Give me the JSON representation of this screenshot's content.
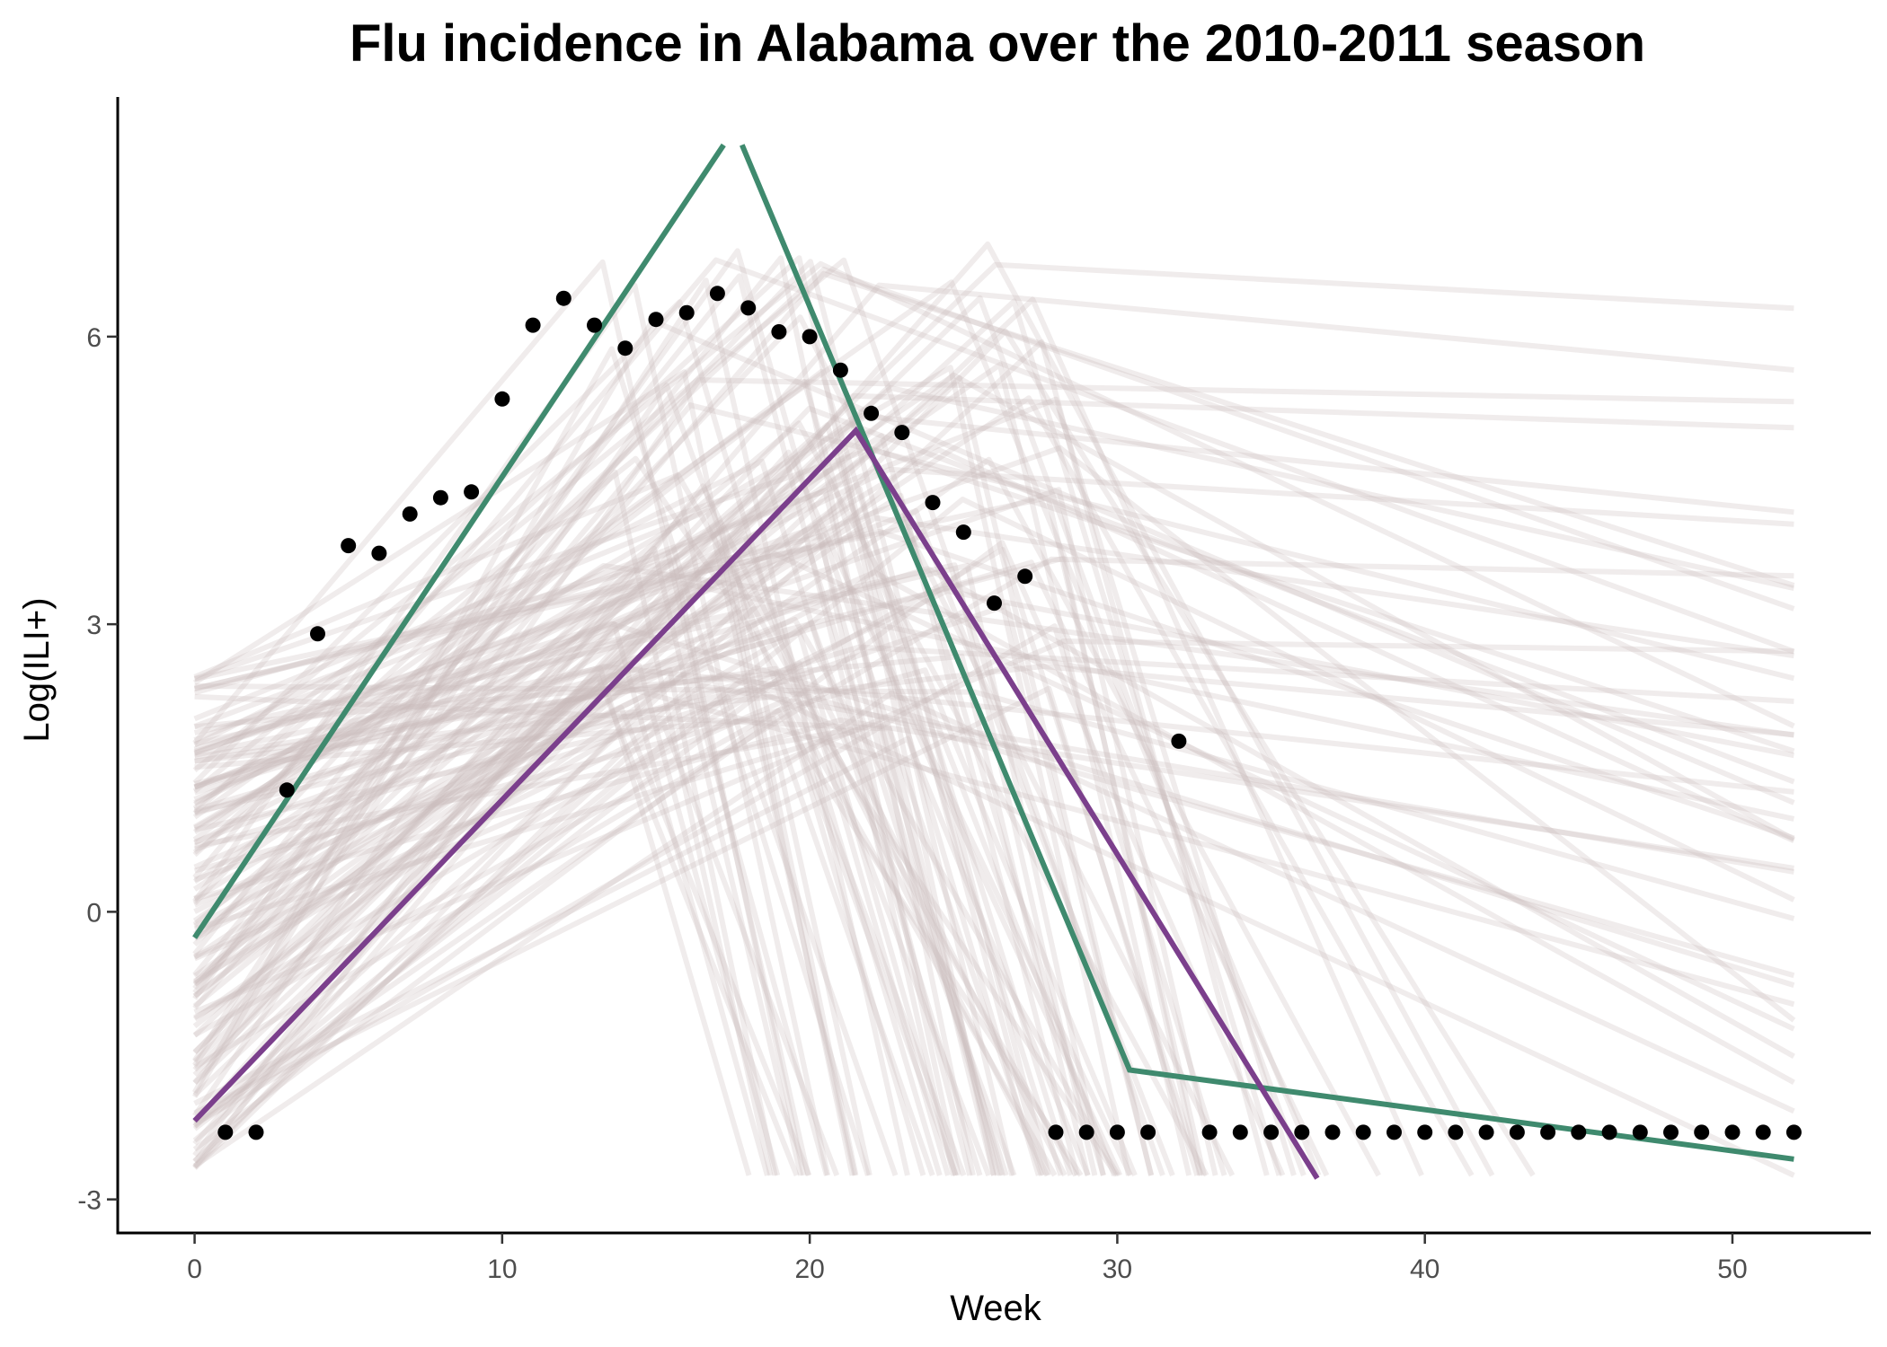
{
  "chart_data": {
    "type": "line",
    "title": "Flu incidence in Alabama over the 2010-2011 season",
    "xlabel": "Week",
    "ylabel": "Log(ILI+)",
    "xlim": [
      -2.5,
      54.5
    ],
    "ylim": [
      -3.35,
      8.5
    ],
    "x_ticks": [
      0,
      10,
      20,
      30,
      40,
      50
    ],
    "y_ticks": [
      -3,
      0,
      3,
      6
    ],
    "grid": false,
    "legend": "none",
    "colors": {
      "observed": "#000000",
      "fit_green": "#3f8a6e",
      "fit_purple": "#7b3f8c",
      "ensemble": "#c9bcbc"
    },
    "observed": {
      "x": [
        1,
        2,
        3,
        4,
        5,
        6,
        7,
        8,
        9,
        10,
        11,
        12,
        13,
        14,
        15,
        16,
        17,
        18,
        19,
        20,
        21,
        22,
        23,
        24,
        25,
        26,
        27,
        28,
        29,
        30,
        31,
        32,
        33,
        34,
        35,
        36,
        37,
        38,
        39,
        40,
        41,
        42,
        43,
        44,
        45,
        46,
        47,
        48,
        49,
        50,
        51,
        52
      ],
      "y": [
        -2.3,
        -2.3,
        1.27,
        2.9,
        3.82,
        3.74,
        4.15,
        4.32,
        4.38,
        5.35,
        6.12,
        6.4,
        6.12,
        5.88,
        6.18,
        6.25,
        6.45,
        6.3,
        6.05,
        6.0,
        5.65,
        5.2,
        5.0,
        4.27,
        3.96,
        3.22,
        3.5,
        -2.3,
        -2.3,
        -2.3,
        -2.3,
        1.78,
        -2.3,
        -2.3,
        -2.3,
        -2.3,
        -2.3,
        -2.3,
        -2.3,
        -2.3,
        -2.3,
        -2.3,
        -2.3,
        -2.3,
        -2.3,
        -2.3,
        -2.3,
        -2.3,
        -2.3,
        -2.3,
        -2.3,
        -2.3
      ]
    },
    "series": [
      {
        "x": [
          0,
          17.2
        ],
        "y": [
          -0.27,
          8.0
        ]
      },
      {
        "x": [
          17.8,
          30.4,
          52
        ],
        "y": [
          8.0,
          -1.65,
          -2.58
        ]
      },
      {
        "x": [
          0,
          21.5,
          36.5
        ],
        "y": [
          -2.18,
          5.02,
          -2.78
        ]
      }
    ]
  }
}
